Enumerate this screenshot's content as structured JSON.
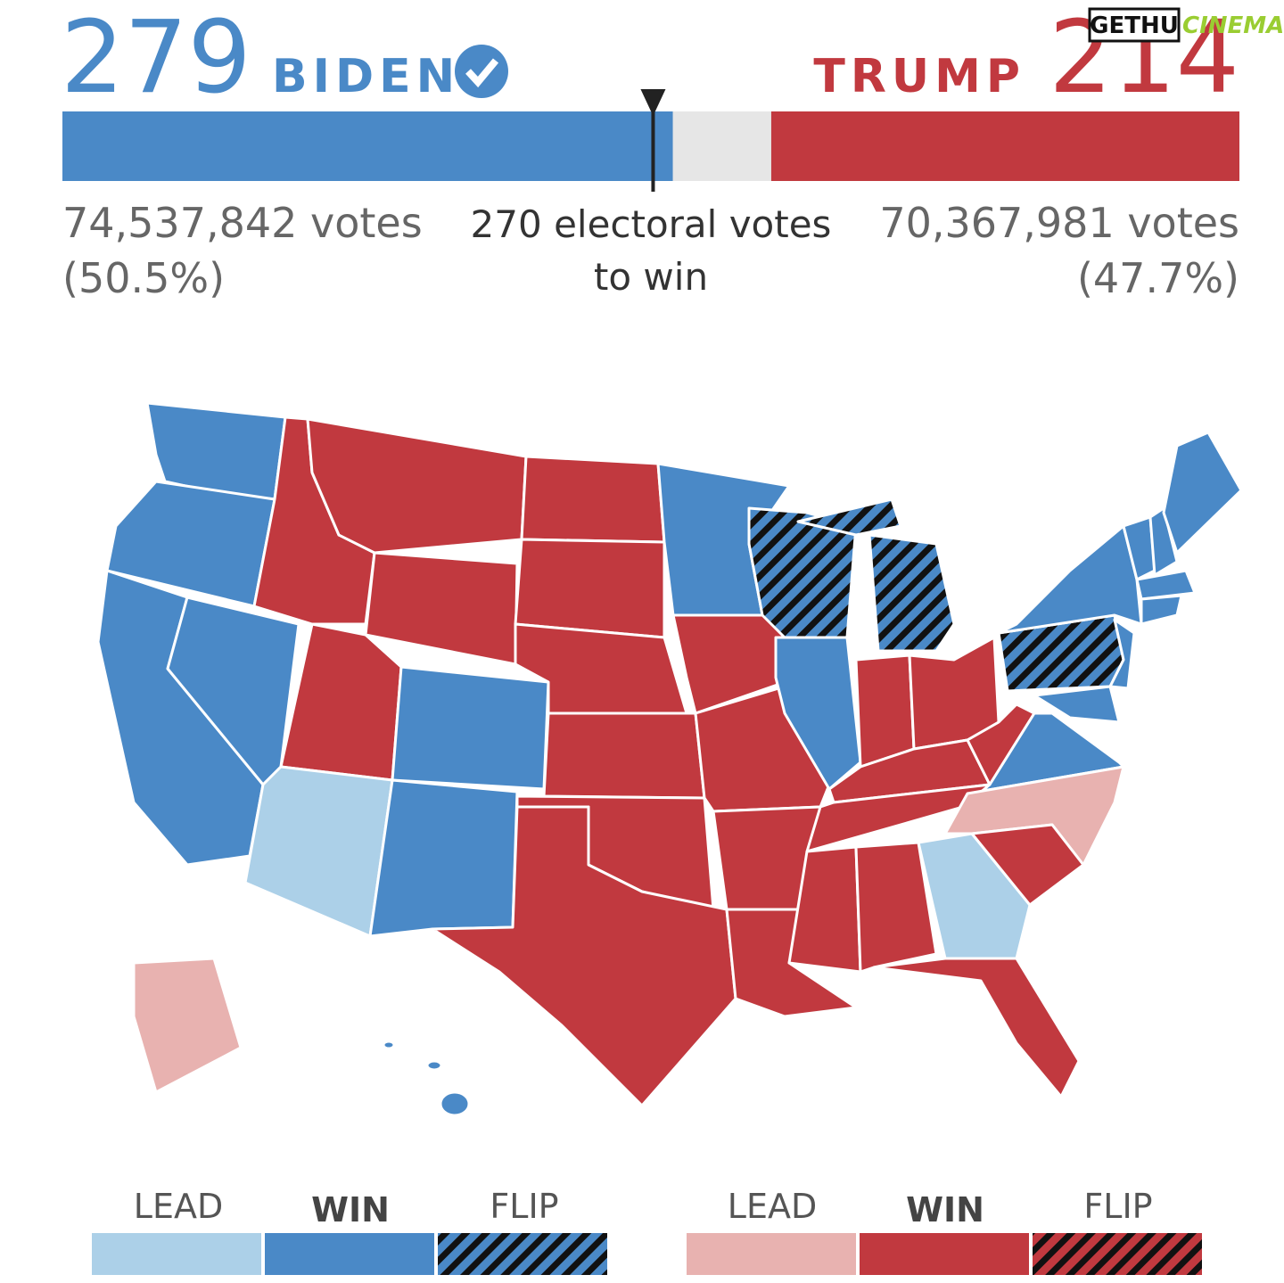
{
  "header": {
    "biden": {
      "electoral_votes": 279,
      "name": "BIDEN",
      "votes": "74,537,842 votes",
      "share": "(50.5%)"
    },
    "trump": {
      "electoral_votes": 214,
      "name": "TRUMP",
      "votes": "70,367,981 votes",
      "share": "(47.7%)"
    },
    "threshold": {
      "value": 270,
      "label": "270 electoral votes"
    },
    "threshold_note": "to win",
    "scale": [
      0,
      538
    ]
  },
  "legend": {
    "biden": [
      "LEAD",
      "WIN",
      "FLIP"
    ],
    "trump": [
      "LEAD",
      "WIN",
      "FLIP"
    ]
  },
  "watermark": [
    "GETHU",
    "CINEMA"
  ]
}
